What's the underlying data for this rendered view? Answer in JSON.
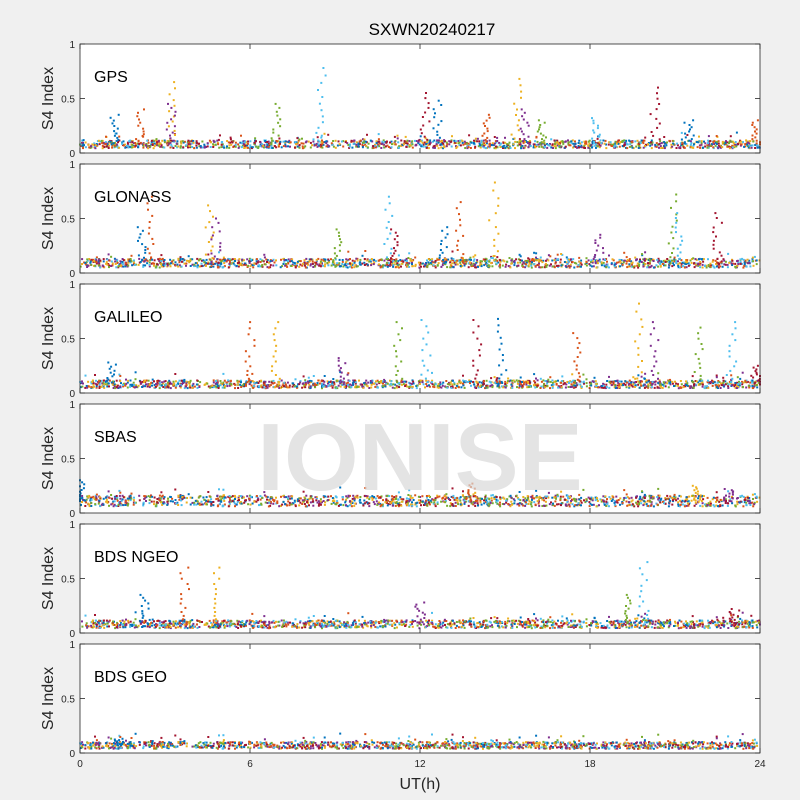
{
  "figure": {
    "title": "SXWN20240217",
    "xlabel": "UT(h)",
    "xticks": [
      "0",
      "6",
      "12",
      "18",
      "24"
    ],
    "watermark": "IONISE"
  },
  "colors": [
    "#0072BD",
    "#D95319",
    "#EDB120",
    "#7E2F8E",
    "#77AC30",
    "#4DBEEE",
    "#A2142F"
  ],
  "chart_data": [
    {
      "type": "scatter",
      "label": "GPS",
      "ylabel": "S4 Index",
      "xlim": [
        0,
        24
      ],
      "ylim": [
        0,
        1
      ],
      "yticks": [
        "0",
        "0.5",
        "1"
      ],
      "xticks": [
        0,
        6,
        12,
        18,
        24
      ],
      "baseline": 0.08,
      "spikes": [
        [
          1.2,
          0.35
        ],
        [
          2.1,
          0.4
        ],
        [
          3.2,
          0.65
        ],
        [
          3.2,
          0.45
        ],
        [
          6.9,
          0.45
        ],
        [
          8.5,
          0.78
        ],
        [
          12.2,
          0.55
        ],
        [
          12.6,
          0.48
        ],
        [
          14.3,
          0.35
        ],
        [
          15.4,
          0.68
        ],
        [
          15.7,
          0.4
        ],
        [
          16.3,
          0.3
        ],
        [
          18.2,
          0.32
        ],
        [
          20.3,
          0.6
        ],
        [
          21.5,
          0.3
        ],
        [
          23.9,
          0.3
        ]
      ]
    },
    {
      "type": "scatter",
      "label": "GLONASS",
      "ylabel": "S4 Index",
      "xlim": [
        0,
        24
      ],
      "ylim": [
        0,
        1
      ],
      "yticks": [
        "0",
        "0.5",
        "1"
      ],
      "xticks": [
        0,
        6,
        12,
        18,
        24
      ],
      "baseline": 0.09,
      "spikes": [
        [
          2.2,
          0.42
        ],
        [
          2.5,
          0.7
        ],
        [
          4.6,
          0.62
        ],
        [
          4.8,
          0.5
        ],
        [
          9.1,
          0.4
        ],
        [
          10.9,
          0.7
        ],
        [
          11.1,
          0.4
        ],
        [
          12.8,
          0.42
        ],
        [
          13.4,
          0.65
        ],
        [
          14.6,
          0.83
        ],
        [
          18.3,
          0.35
        ],
        [
          20.9,
          0.72
        ],
        [
          21.1,
          0.55
        ],
        [
          22.5,
          0.55
        ]
      ]
    },
    {
      "type": "scatter",
      "label": "GALILEO",
      "ylabel": "S4 Index",
      "xlim": [
        0,
        24
      ],
      "ylim": [
        0,
        1
      ],
      "yticks": [
        "0",
        "0.5",
        "1"
      ],
      "xticks": [
        0,
        6,
        12,
        18,
        24
      ],
      "baseline": 0.08,
      "spikes": [
        [
          1.1,
          0.28
        ],
        [
          6.0,
          0.65
        ],
        [
          6.9,
          0.65
        ],
        [
          9.3,
          0.32
        ],
        [
          11.2,
          0.65
        ],
        [
          12.2,
          0.67
        ],
        [
          14.0,
          0.67
        ],
        [
          14.9,
          0.68
        ],
        [
          17.5,
          0.55
        ],
        [
          19.7,
          0.82
        ],
        [
          20.3,
          0.65
        ],
        [
          21.8,
          0.6
        ],
        [
          23.0,
          0.65
        ],
        [
          23.9,
          0.25
        ]
      ]
    },
    {
      "type": "scatter",
      "label": "SBAS",
      "ylabel": "S4 Index",
      "xlim": [
        0,
        24
      ],
      "ylim": [
        0,
        1
      ],
      "yticks": [
        "0",
        "0.5",
        "1"
      ],
      "xticks": [
        0,
        6,
        12,
        18,
        24
      ],
      "baseline": 0.11,
      "spikes": [
        [
          0.0,
          0.3
        ],
        [
          13.8,
          0.27
        ],
        [
          21.8,
          0.25
        ],
        [
          22.9,
          0.22
        ]
      ]
    },
    {
      "type": "scatter",
      "label": "BDS NGEO",
      "ylabel": "S4 Index",
      "xlim": [
        0,
        24
      ],
      "ylim": [
        0,
        1
      ],
      "yticks": [
        "0",
        "0.5",
        "1"
      ],
      "xticks": [
        0,
        6,
        12,
        18,
        24
      ],
      "baseline": 0.08,
      "spikes": [
        [
          2.3,
          0.35
        ],
        [
          3.7,
          0.6
        ],
        [
          4.8,
          0.6
        ],
        [
          12.0,
          0.28
        ],
        [
          19.3,
          0.35
        ],
        [
          19.9,
          0.65
        ],
        [
          23.1,
          0.22
        ]
      ]
    },
    {
      "type": "scatter",
      "label": "BDS GEO",
      "ylabel": "S4 Index",
      "xlim": [
        0,
        24
      ],
      "ylim": [
        0,
        1
      ],
      "yticks": [
        "0",
        "0.5",
        "1"
      ],
      "xticks": [
        0,
        6,
        12,
        18,
        24
      ],
      "baseline": 0.07,
      "spikes": [
        [
          1.4,
          0.13
        ]
      ]
    }
  ]
}
